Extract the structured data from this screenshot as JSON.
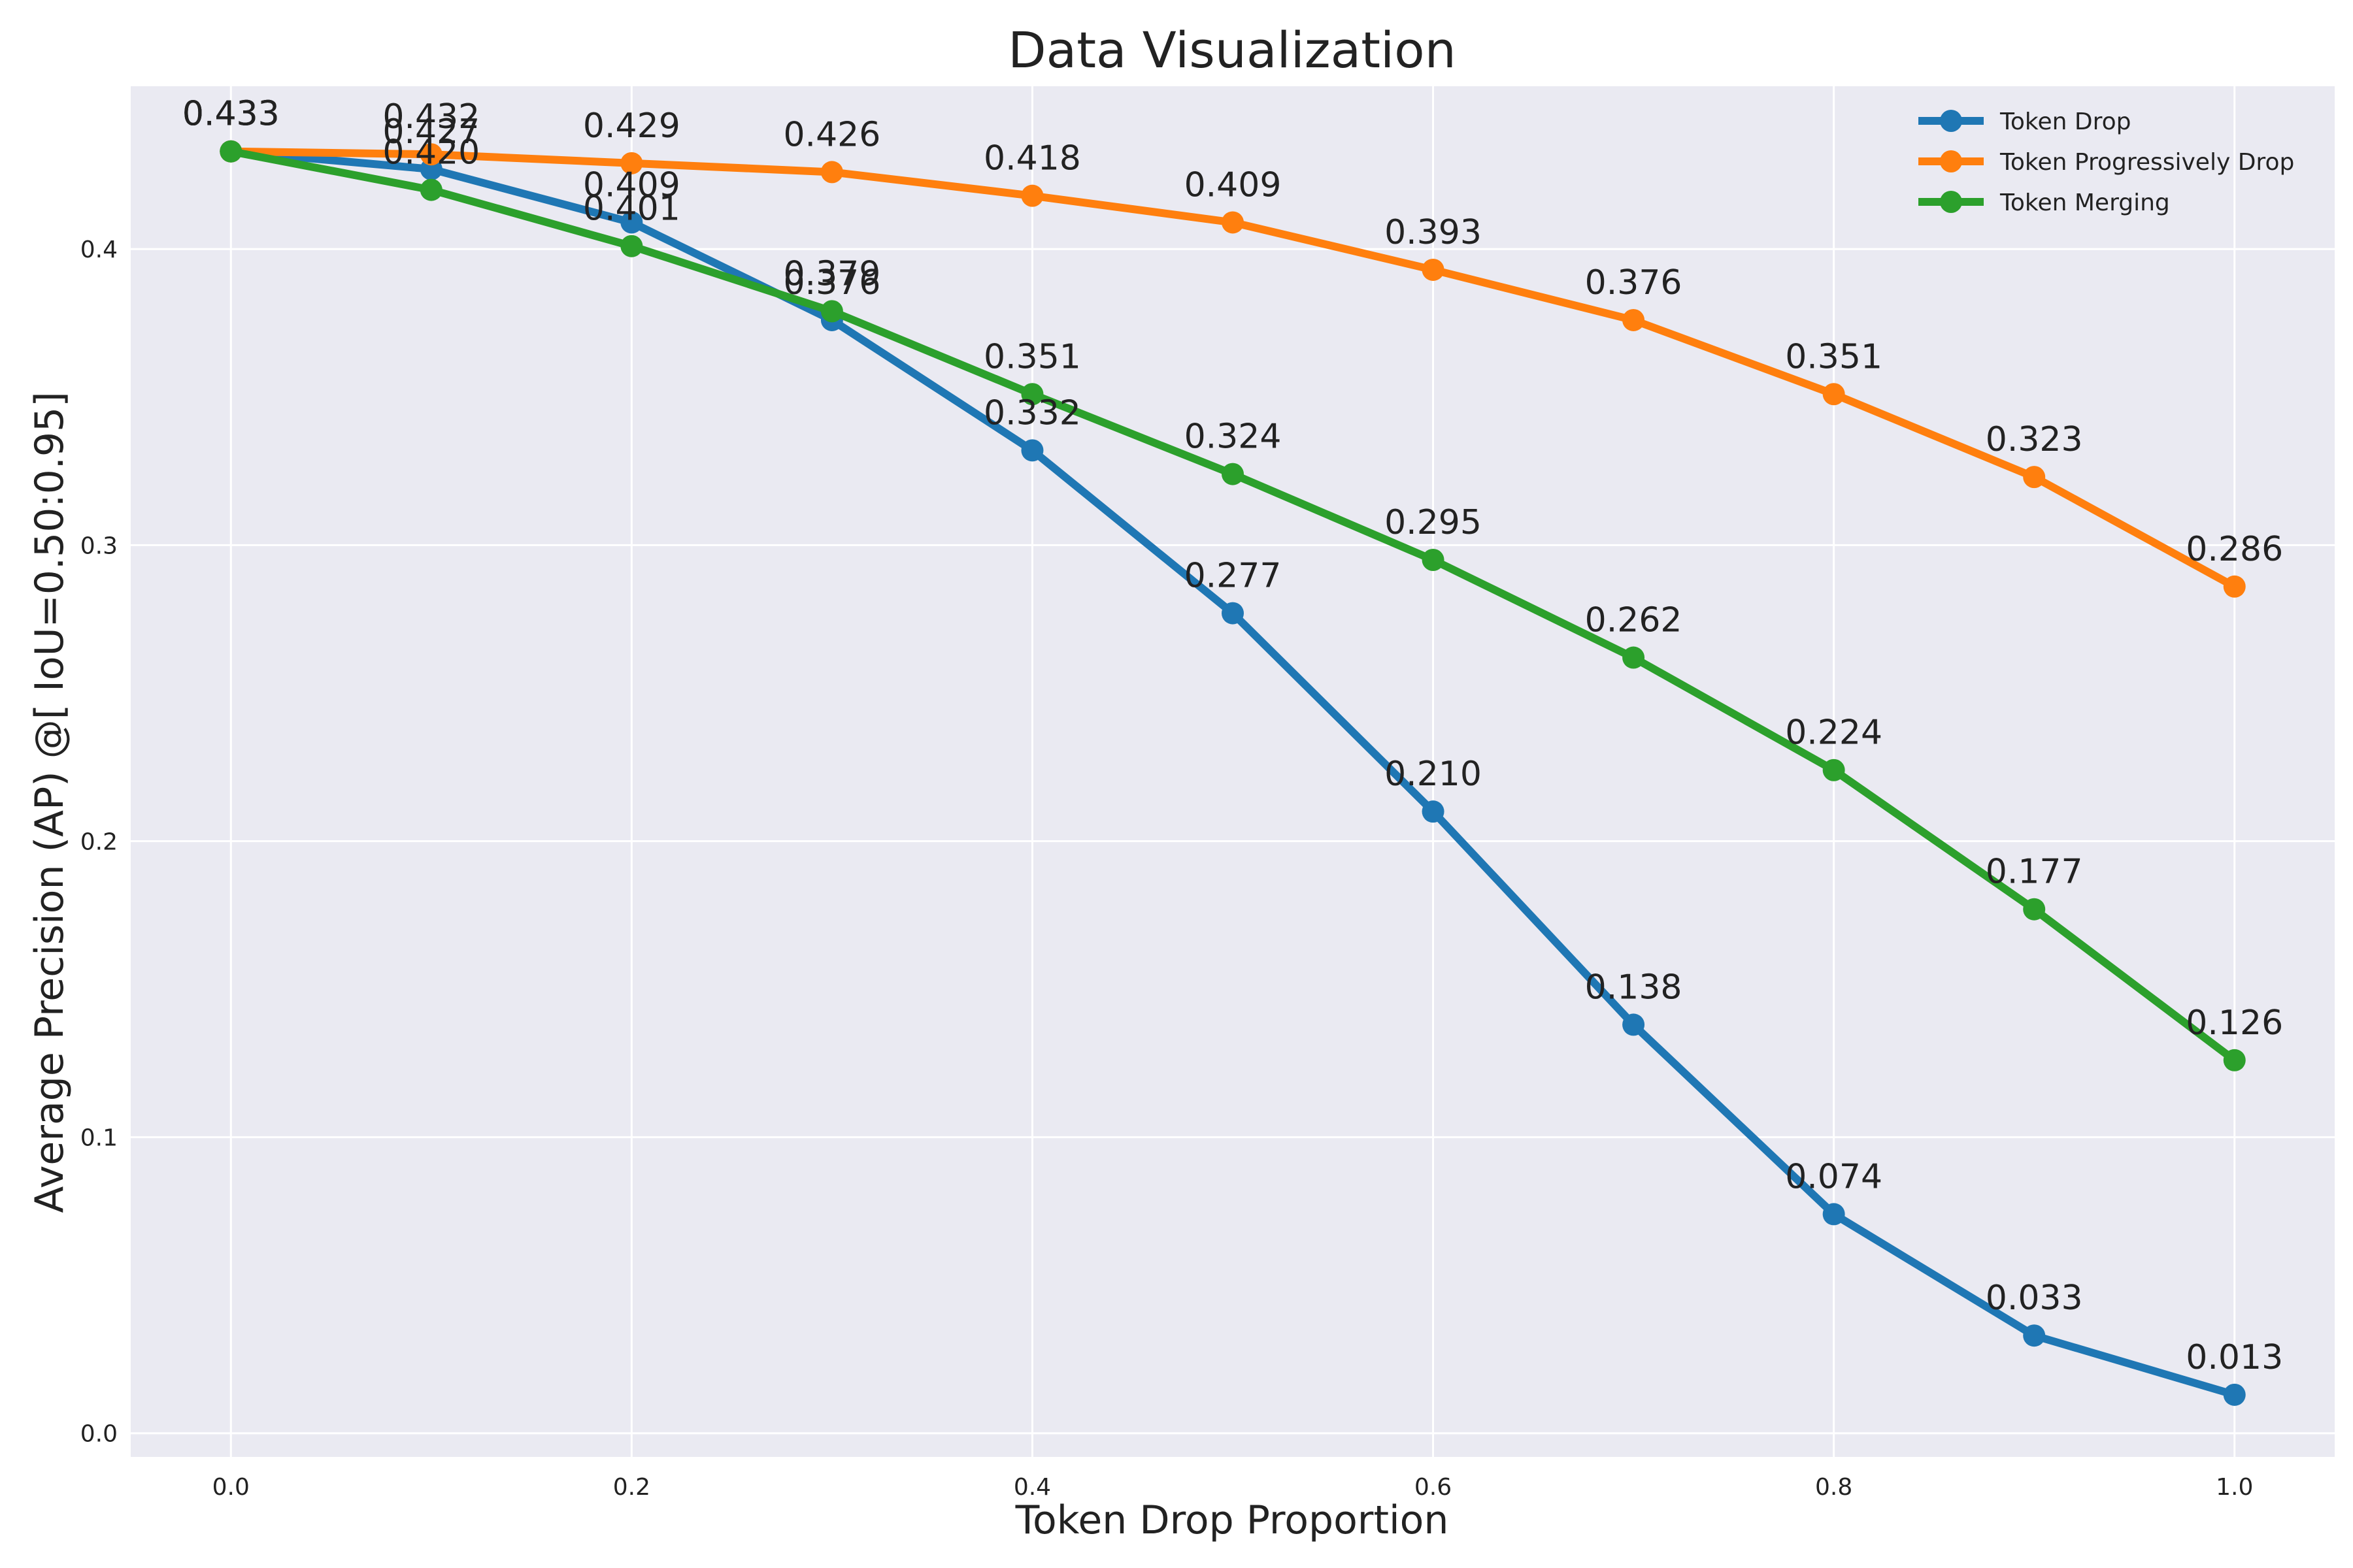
{
  "chart_data": {
    "type": "line",
    "title": "Data Visualization",
    "xlabel": "Token Drop Proportion",
    "ylabel": "Average Precision  (AP) @[ IoU=0.50:0.95]",
    "x": [
      0.0,
      0.1,
      0.2,
      0.3,
      0.4,
      0.5,
      0.6,
      0.7,
      0.8,
      0.9,
      1.0
    ],
    "xlim": [
      -0.05,
      1.05
    ],
    "ylim": [
      -0.008,
      0.455
    ],
    "xticks": [
      "0.0",
      "0.2",
      "0.4",
      "0.6",
      "0.8",
      "1.0"
    ],
    "yticks": [
      "0.0",
      "0.1",
      "0.2",
      "0.3",
      "0.4"
    ],
    "grid": true,
    "legend_position": "top-right",
    "series": [
      {
        "name": "Token Drop",
        "color": "#1f77b4",
        "values": [
          0.433,
          0.427,
          0.409,
          0.376,
          0.332,
          0.277,
          0.21,
          0.138,
          0.074,
          0.033,
          0.013
        ],
        "labels": [
          "0.433",
          "0.427",
          "0.409",
          "0.376",
          "0.332",
          "0.277",
          "0.210",
          "0.138",
          "0.074",
          "0.033",
          "0.013"
        ]
      },
      {
        "name": "Token Progressively Drop",
        "color": "#ff7f0e",
        "values": [
          0.433,
          0.432,
          0.429,
          0.426,
          0.418,
          0.409,
          0.393,
          0.376,
          0.351,
          0.323,
          0.286
        ],
        "labels": [
          "0.433",
          "0.432",
          "0.429",
          "0.426",
          "0.418",
          "0.409",
          "0.393",
          "0.376",
          "0.351",
          "0.323",
          "0.286"
        ]
      },
      {
        "name": "Token Merging",
        "color": "#2ca02c",
        "values": [
          0.433,
          0.42,
          0.401,
          0.379,
          0.351,
          0.324,
          0.295,
          0.262,
          0.224,
          0.177,
          0.126
        ],
        "labels": [
          "0.433",
          "0.420",
          "0.401",
          "0.379",
          "0.351",
          "0.324",
          "0.295",
          "0.262",
          "0.224",
          "0.177",
          "0.126"
        ]
      }
    ],
    "style": {
      "plot_background": "#eaeaf2",
      "grid_color": "#ffffff"
    }
  }
}
